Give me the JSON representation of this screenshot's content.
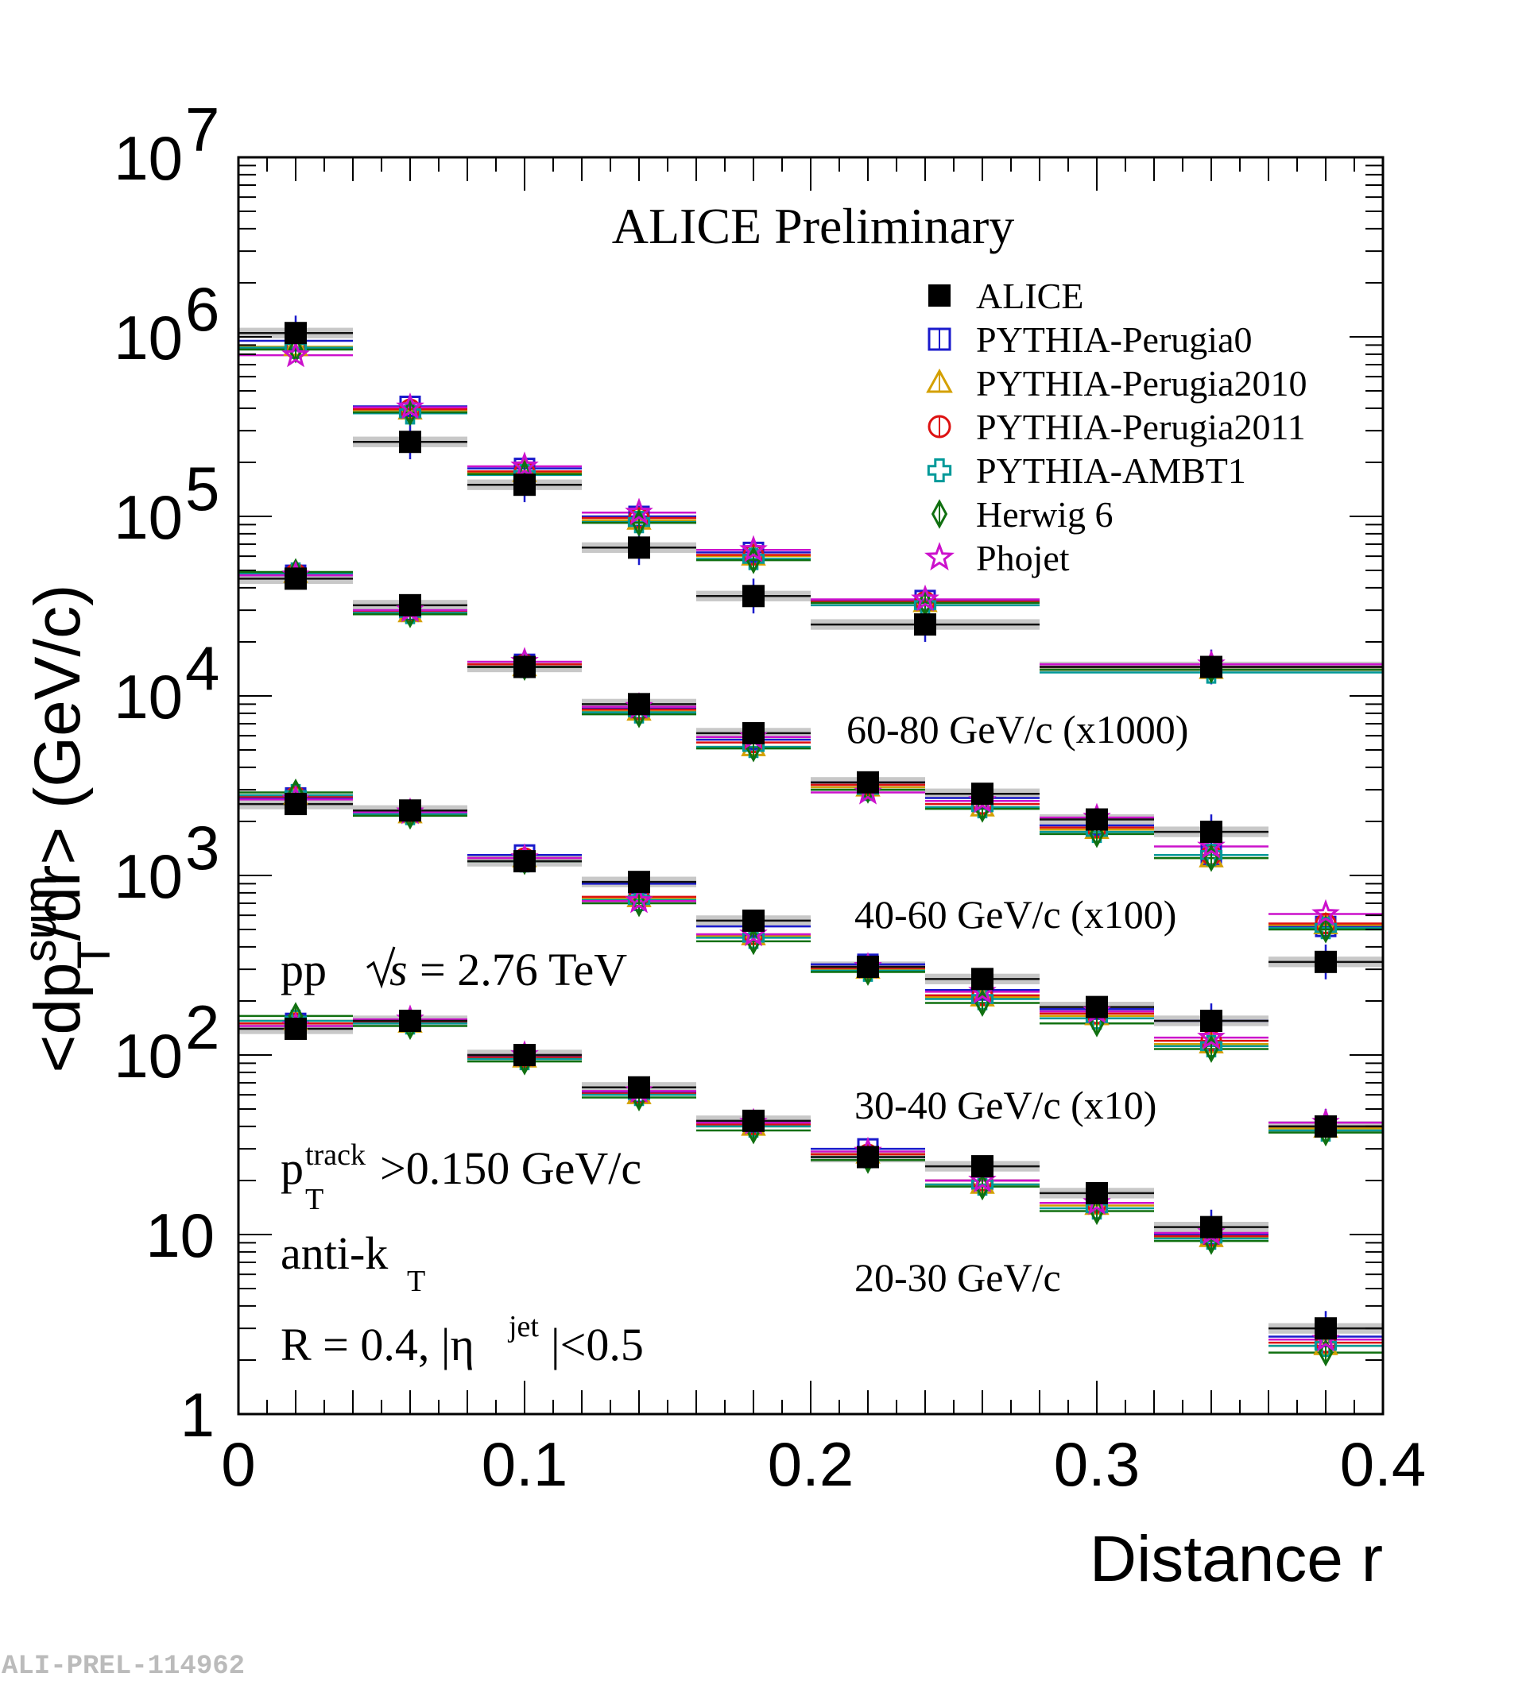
{
  "chart_data": {
    "type": "scatter",
    "title": "ALICE Preliminary",
    "xlabel": "Distance r",
    "ylabel": "<dp_T^sum/dr> (GeV/c)",
    "xlim": [
      0,
      0.4
    ],
    "ylim": [
      1,
      10000000
    ],
    "yscale": "log",
    "x_ticks": [
      "0",
      "0.1",
      "0.2",
      "0.3",
      "0.4"
    ],
    "y_ticks": [
      {
        "v": 1,
        "base": "1",
        "exp": ""
      },
      {
        "v": 10,
        "base": "10",
        "exp": ""
      },
      {
        "v": 100,
        "base": "10",
        "exp": "2"
      },
      {
        "v": 1000,
        "base": "10",
        "exp": "3"
      },
      {
        "v": 10000,
        "base": "10",
        "exp": "4"
      },
      {
        "v": 100000,
        "base": "10",
        "exp": "5"
      },
      {
        "v": 1000000,
        "base": "10",
        "exp": "6"
      },
      {
        "v": 10000000,
        "base": "10",
        "exp": "7"
      }
    ],
    "legend": [
      {
        "name": "ALICE",
        "marker": "filled-square",
        "color": "#000000"
      },
      {
        "name": "PYTHIA-Perugia0",
        "marker": "open-square",
        "color": "#1a1acc"
      },
      {
        "name": "PYTHIA-Perugia2010",
        "marker": "open-triangle",
        "color": "#d4a000"
      },
      {
        "name": "PYTHIA-Perugia2011",
        "marker": "open-circle",
        "color": "#dd1111"
      },
      {
        "name": "PYTHIA-AMBT1",
        "marker": "open-cross",
        "color": "#009999"
      },
      {
        "name": "Herwig 6",
        "marker": "open-diamond",
        "color": "#107010"
      },
      {
        "name": "Phojet",
        "marker": "open-star",
        "color": "#cc11cc"
      }
    ],
    "series": [
      {
        "label": "60-80 GeV/c (x1000)",
        "bins": [
          [
            0,
            0.04
          ],
          [
            0.04,
            0.08
          ],
          [
            0.08,
            0.12
          ],
          [
            0.12,
            0.16
          ],
          [
            0.16,
            0.2
          ],
          [
            0.2,
            0.28
          ],
          [
            0.28,
            0.4
          ]
        ],
        "alice": [
          1050000,
          260000,
          150000,
          67000,
          36000,
          25000,
          14500
        ],
        "models": {
          "PYTHIA-Perugia0": [
            950000,
            410000,
            185000,
            100000,
            63000,
            34000,
            14500
          ],
          "PYTHIA-Perugia2010": [
            880000,
            390000,
            175000,
            95000,
            60000,
            33000,
            14000
          ],
          "PYTHIA-Perugia2011": [
            860000,
            395000,
            178000,
            98000,
            61000,
            33500,
            14500
          ],
          "PYTHIA-AMBT1": [
            870000,
            375000,
            170000,
            93000,
            58000,
            32000,
            13500
          ],
          "Herwig 6": [
            850000,
            380000,
            172000,
            92000,
            57000,
            33000,
            14000
          ],
          "Phojet": [
            790000,
            405000,
            190000,
            105000,
            65000,
            34500,
            15000
          ]
        }
      },
      {
        "label": "40-60 GeV/c (x100)",
        "bins": [
          [
            0,
            0.04
          ],
          [
            0.04,
            0.08
          ],
          [
            0.08,
            0.12
          ],
          [
            0.12,
            0.16
          ],
          [
            0.16,
            0.2
          ],
          [
            0.2,
            0.24
          ],
          [
            0.24,
            0.28
          ],
          [
            0.28,
            0.32
          ],
          [
            0.32,
            0.36
          ],
          [
            0.36,
            0.4
          ]
        ],
        "alice": [
          45000,
          32000,
          14500,
          9000,
          6200,
          3300,
          2850,
          2050,
          1750,
          330
        ],
        "models": {
          "PYTHIA-Perugia0": [
            47000,
            30000,
            15000,
            8500,
            5700,
            3300,
            2700,
            1900,
            1300,
            520
          ],
          "PYTHIA-Perugia2010": [
            48000,
            29000,
            14500,
            8200,
            5200,
            3100,
            2400,
            1800,
            1250,
            530
          ],
          "PYTHIA-Perugia2011": [
            48000,
            29500,
            15000,
            8400,
            5500,
            3200,
            2500,
            1850,
            1300,
            540
          ],
          "PYTHIA-AMBT1": [
            48000,
            29000,
            14500,
            8100,
            5200,
            3000,
            2400,
            1750,
            1300,
            510
          ],
          "Herwig 6": [
            49000,
            28500,
            14500,
            7900,
            5100,
            3000,
            2350,
            1700,
            1250,
            500
          ],
          "Phojet": [
            47000,
            30000,
            15500,
            8700,
            5900,
            2900,
            2600,
            2100,
            1450,
            610
          ]
        }
      },
      {
        "label": "30-40 GeV/c (x10)",
        "bins": [
          [
            0,
            0.04
          ],
          [
            0.04,
            0.08
          ],
          [
            0.08,
            0.12
          ],
          [
            0.12,
            0.16
          ],
          [
            0.16,
            0.2
          ],
          [
            0.2,
            0.24
          ],
          [
            0.24,
            0.28
          ],
          [
            0.28,
            0.32
          ],
          [
            0.32,
            0.36
          ],
          [
            0.36,
            0.4
          ]
        ],
        "alice": [
          2500,
          2300,
          1200,
          920,
          560,
          310,
          265,
          185,
          155,
          40
        ],
        "models": {
          "PYTHIA-Perugia0": [
            2700,
            2250,
            1300,
            900,
            520,
            320,
            230,
            180,
            155,
            40
          ],
          "PYTHIA-Perugia2010": [
            2800,
            2200,
            1250,
            750,
            460,
            300,
            210,
            165,
            115,
            39
          ],
          "PYTHIA-Perugia2011": [
            2750,
            2250,
            1250,
            760,
            470,
            305,
            215,
            170,
            120,
            40
          ],
          "PYTHIA-AMBT1": [
            2800,
            2200,
            1200,
            730,
            450,
            295,
            205,
            160,
            112,
            38
          ],
          "Herwig 6": [
            2900,
            2150,
            1200,
            700,
            430,
            290,
            195,
            150,
            108,
            37
          ],
          "Phojet": [
            2650,
            2250,
            1250,
            720,
            470,
            310,
            225,
            175,
            125,
            42
          ]
        }
      },
      {
        "label": "20-30 GeV/c",
        "bins": [
          [
            0,
            0.04
          ],
          [
            0.04,
            0.08
          ],
          [
            0.08,
            0.12
          ],
          [
            0.12,
            0.16
          ],
          [
            0.16,
            0.2
          ],
          [
            0.2,
            0.24
          ],
          [
            0.24,
            0.28
          ],
          [
            0.28,
            0.32
          ],
          [
            0.32,
            0.36
          ],
          [
            0.36,
            0.4
          ]
        ],
        "alice": [
          140,
          155,
          100,
          66,
          43,
          27,
          24,
          17,
          11,
          3.0
        ],
        "models": {
          "PYTHIA-Perugia0": [
            150,
            155,
            98,
            62,
            42,
            30,
            20,
            15,
            10,
            2.7
          ],
          "PYTHIA-Perugia2010": [
            155,
            150,
            96,
            60,
            40,
            28,
            19,
            14.5,
            9.6,
            2.4
          ],
          "PYTHIA-Perugia2011": [
            150,
            152,
            97,
            61,
            41,
            28,
            20,
            15,
            9.8,
            2.5
          ],
          "PYTHIA-AMBT1": [
            155,
            150,
            95,
            60,
            40,
            27,
            19,
            14,
            9.5,
            2.4
          ],
          "Herwig 6": [
            165,
            145,
            92,
            58,
            38,
            26,
            18.5,
            13.5,
            9.2,
            2.2
          ],
          "Phojet": [
            145,
            158,
            100,
            63,
            42,
            29,
            20,
            15,
            10.2,
            2.6
          ]
        }
      }
    ],
    "annotations": {
      "system_pre": "pp",
      "system_s": "s",
      "system_post": "= 2.76 TeV",
      "ptcut_p": "p",
      "ptcut_sup": "track",
      "ptcut_sub": "T",
      "ptcut_rest": ">0.150 GeV/c",
      "algo_pre": "anti-k",
      "algo_sub": "T",
      "radius_pre": "R = 0.4, |η",
      "radius_sup": "jet",
      "radius_post": "|<0.5"
    },
    "watermark": "ALI-PREL-114962"
  }
}
